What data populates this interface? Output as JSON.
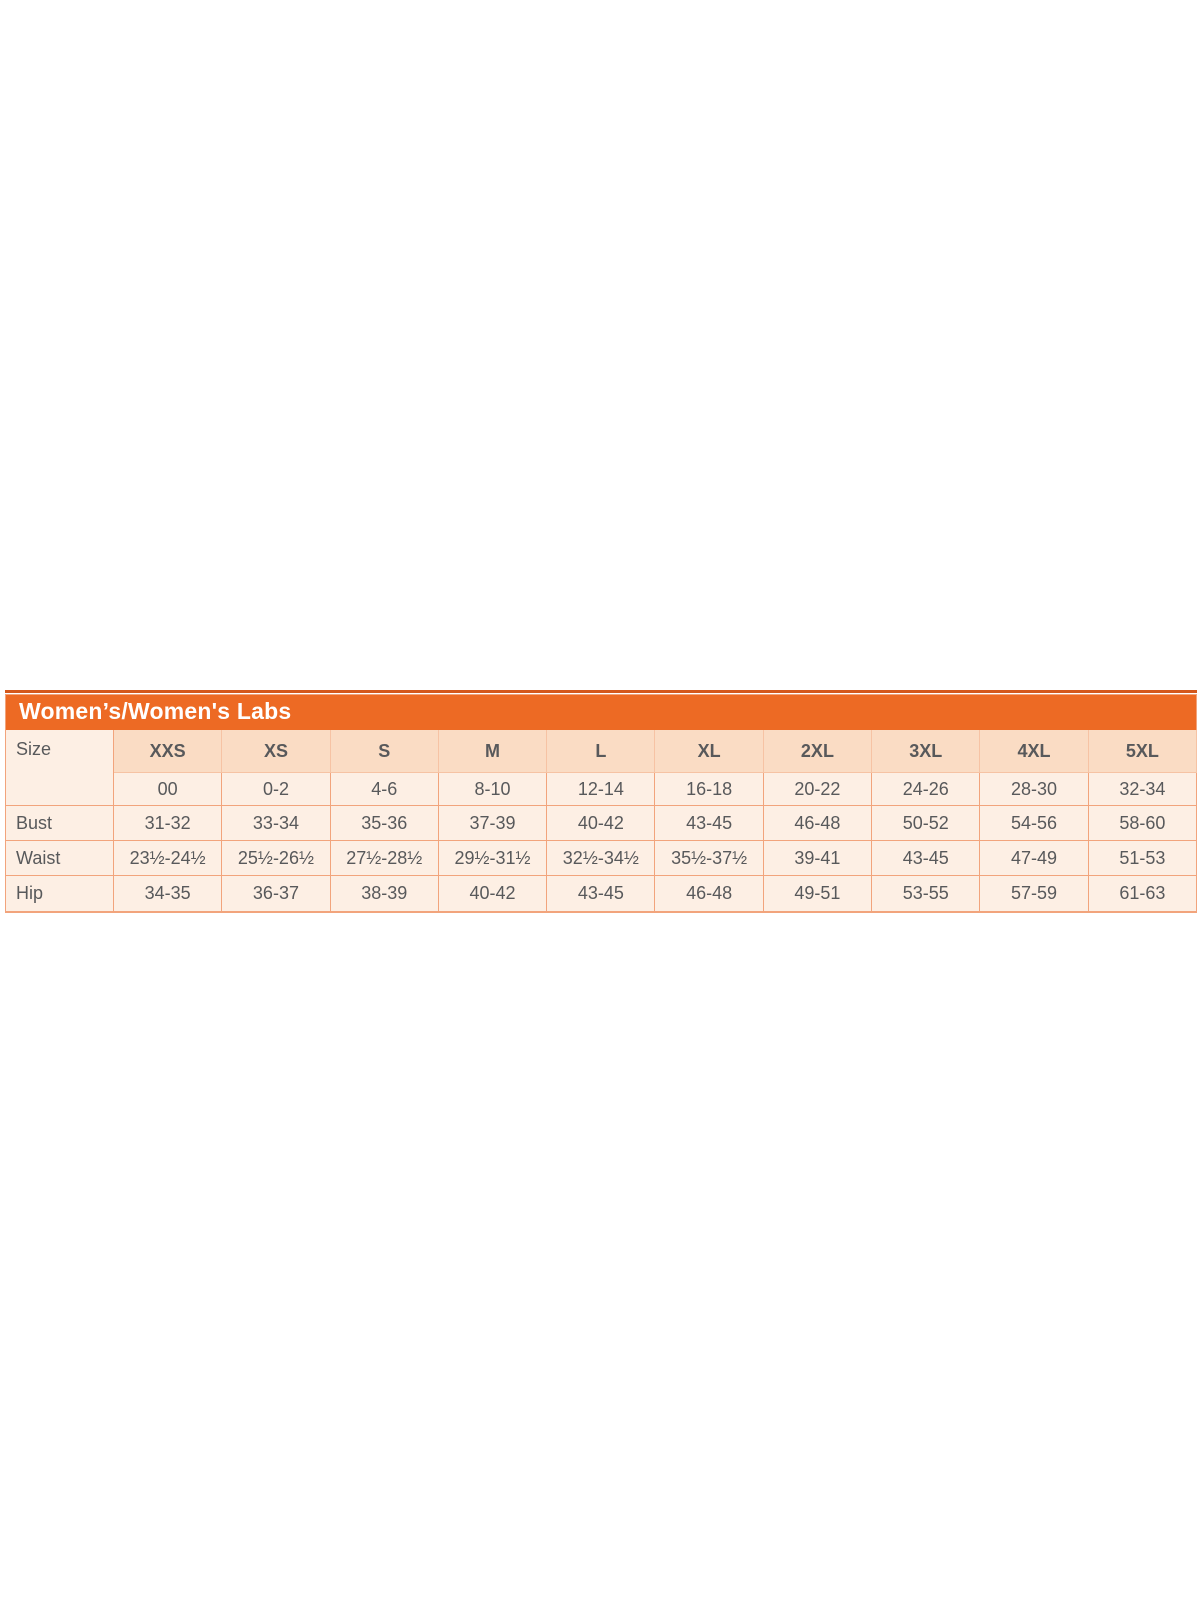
{
  "size_chart": {
    "title": "Women’s/Women's Labs",
    "corner_label": "Size",
    "size_headers": [
      "XXS",
      "XS",
      "S",
      "M",
      "L",
      "XL",
      "2XL",
      "3XL",
      "4XL",
      "5XL"
    ],
    "numeric_sizes": [
      "00",
      "0-2",
      "4-6",
      "8-10",
      "12-14",
      "16-18",
      "20-22",
      "24-26",
      "28-30",
      "32-34"
    ],
    "measurement_rows": [
      {
        "label": "Bust",
        "values": [
          "31-32",
          "33-34",
          "35-36",
          "37-39",
          "40-42",
          "43-45",
          "46-48",
          "50-52",
          "54-56",
          "58-60"
        ]
      },
      {
        "label": "Waist",
        "values": [
          "23½-24½",
          "25½-26½",
          "27½-28½",
          "29½-31½",
          "32½-34½",
          "35½-37½",
          "39-41",
          "43-45",
          "47-49",
          "51-53"
        ]
      },
      {
        "label": "Hip",
        "values": [
          "34-35",
          "36-37",
          "38-39",
          "40-42",
          "43-45",
          "46-48",
          "49-51",
          "53-55",
          "57-59",
          "61-63"
        ]
      }
    ],
    "colors": {
      "accent_orange": "#ed6a24",
      "top_strip": "#d4581c",
      "header_cell_bg": "#fadcc4",
      "data_cell_bg": "#fdefe4",
      "border": "#f2a47c",
      "header_border": "#f6c3a4",
      "text": "#58595b",
      "title_text": "#ffffff"
    }
  }
}
